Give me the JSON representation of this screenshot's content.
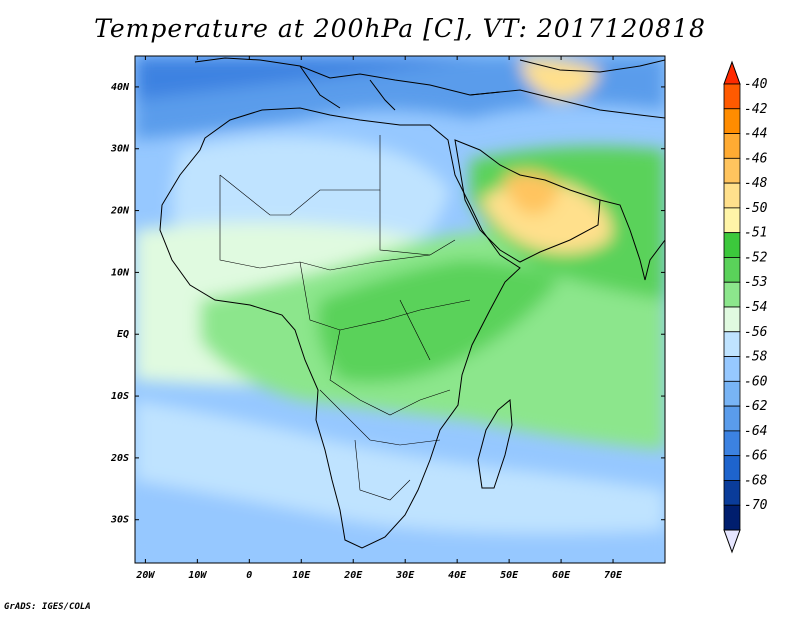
{
  "title": "Temperature at 200hPa [C], VT: 2017120818",
  "credit": "GrADS: IGES/COLA",
  "map": {
    "lon_range": [
      -22,
      80
    ],
    "lat_range": [
      -37,
      45
    ],
    "lon_ticks": [
      {
        "value": -20,
        "label": "20W"
      },
      {
        "value": -10,
        "label": "10W"
      },
      {
        "value": 0,
        "label": "0"
      },
      {
        "value": 10,
        "label": "10E"
      },
      {
        "value": 20,
        "label": "20E"
      },
      {
        "value": 30,
        "label": "30E"
      },
      {
        "value": 40,
        "label": "40E"
      },
      {
        "value": 50,
        "label": "50E"
      },
      {
        "value": 60,
        "label": "60E"
      },
      {
        "value": 70,
        "label": "70E"
      }
    ],
    "lat_ticks": [
      {
        "value": 40,
        "label": "40N"
      },
      {
        "value": 30,
        "label": "30N"
      },
      {
        "value": 20,
        "label": "20N"
      },
      {
        "value": 10,
        "label": "10N"
      },
      {
        "value": 0,
        "label": "EQ"
      },
      {
        "value": -10,
        "label": "10S"
      },
      {
        "value": -20,
        "label": "20S"
      },
      {
        "value": -30,
        "label": "30S"
      }
    ]
  },
  "colorbar": {
    "labels": [
      "-40",
      "-42",
      "-44",
      "-46",
      "-48",
      "-50",
      "-51",
      "-52",
      "-53",
      "-54",
      "-56",
      "-58",
      "-60",
      "-62",
      "-64",
      "-66",
      "-68",
      "-70"
    ],
    "colors": [
      "#ff2a00",
      "#ff5a00",
      "#ff8c00",
      "#ffab33",
      "#ffc45e",
      "#ffe08c",
      "#fff5a8",
      "#3cc83c",
      "#5ad25a",
      "#8ce68c",
      "#e0fae0",
      "#bfe3ff",
      "#96c8ff",
      "#78b4f5",
      "#5a9ceb",
      "#3c82e1",
      "#1e64cd",
      "#0a3c9a",
      "#001e6e",
      "#e6e6ff"
    ]
  }
}
